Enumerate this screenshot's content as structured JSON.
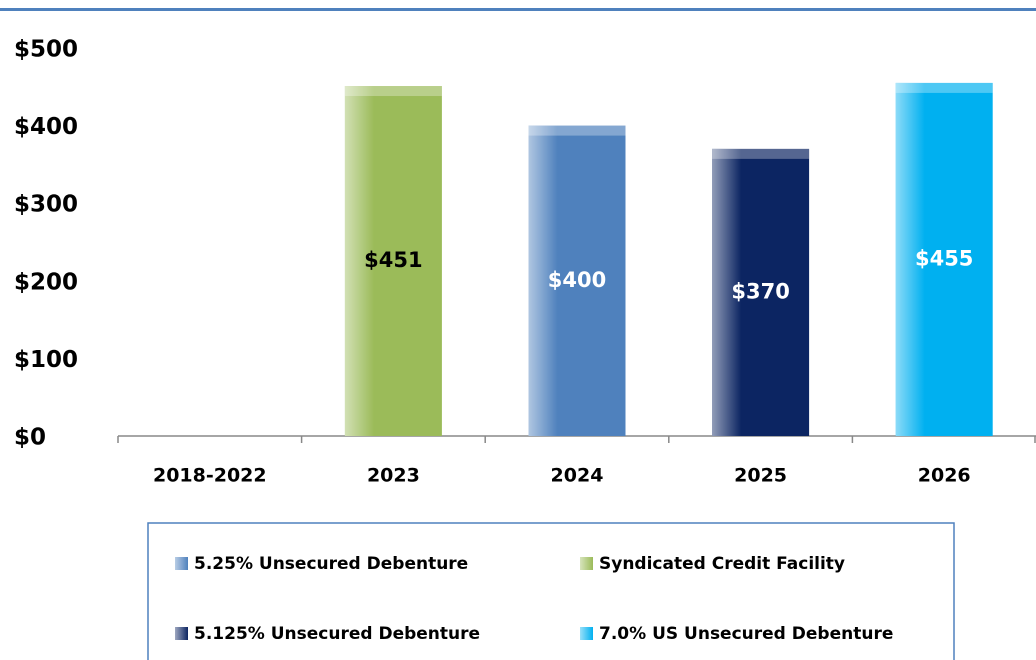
{
  "chart_data": {
    "type": "bar",
    "categories": [
      "2018-2022",
      "2023",
      "2024",
      "2025",
      "2026"
    ],
    "series": [
      {
        "name": "5.25% Unsecured Debenture",
        "color": "#4f81bd",
        "label_color": "#ffffff",
        "values": [
          null,
          null,
          400,
          null,
          null
        ],
        "value_labels": [
          null,
          null,
          "$400",
          null,
          null
        ]
      },
      {
        "name": "Syndicated Credit Facility",
        "color": "#9bbb59",
        "label_color": "#000000",
        "values": [
          null,
          451,
          null,
          null,
          null
        ],
        "value_labels": [
          null,
          "$451",
          null,
          null,
          null
        ]
      },
      {
        "name": "5.125% Unsecured Debenture",
        "color": "#0c2562",
        "label_color": "#ffffff",
        "values": [
          null,
          null,
          null,
          370,
          null
        ],
        "value_labels": [
          null,
          null,
          null,
          "$370",
          null
        ]
      },
      {
        "name": "7.0% US Unsecured Debenture",
        "color": "#00b0f0",
        "label_color": "#ffffff",
        "values": [
          null,
          null,
          null,
          null,
          455
        ],
        "value_labels": [
          null,
          null,
          null,
          null,
          "$455"
        ]
      }
    ],
    "ylim": [
      0,
      500
    ],
    "yticks": [
      {
        "value": 0,
        "label": "$0"
      },
      {
        "value": 100,
        "label": "$100"
      },
      {
        "value": 200,
        "label": "$200"
      },
      {
        "value": 300,
        "label": "$300"
      },
      {
        "value": 400,
        "label": "$400"
      },
      {
        "value": 500,
        "label": "$500"
      }
    ],
    "grid": false
  }
}
